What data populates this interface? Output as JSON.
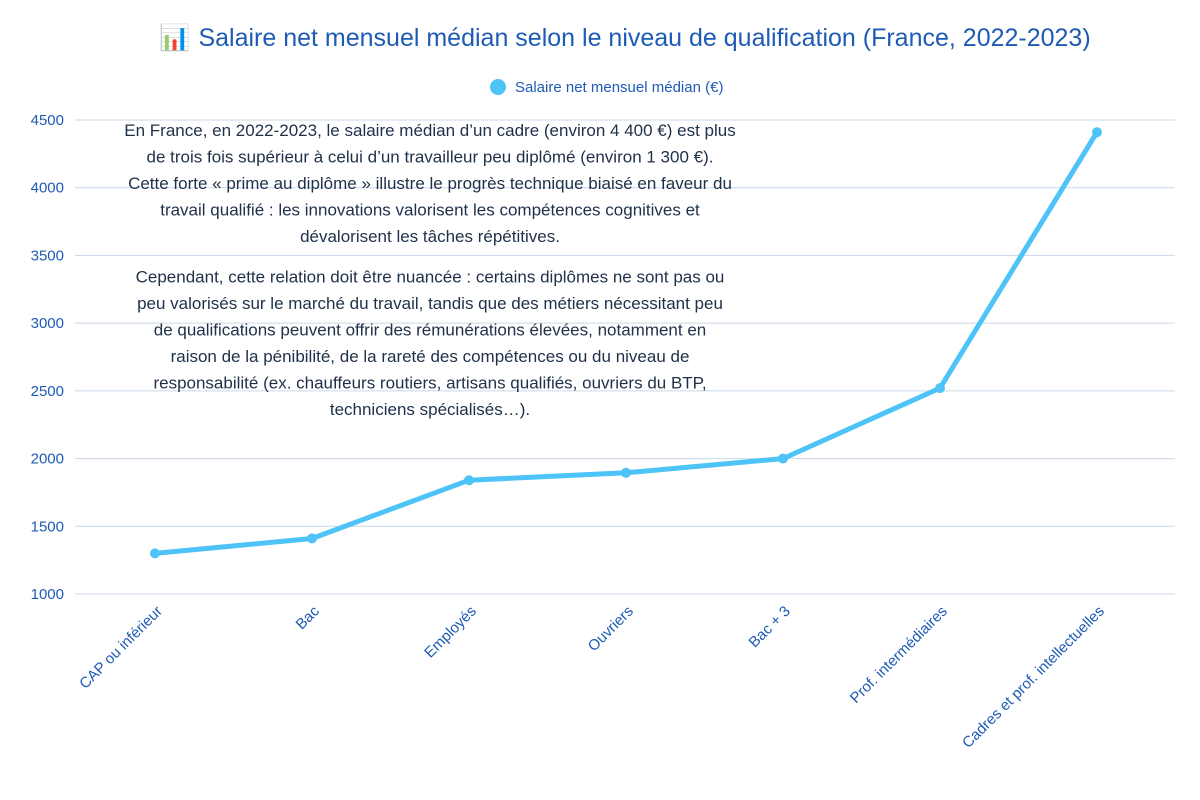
{
  "chart_data": {
    "type": "line",
    "title_icon": "📊",
    "title": "Salaire net mensuel médian selon le niveau de qualification (France, 2022-2023)",
    "categories": [
      "CAP ou inférieur",
      "Bac",
      "Employés",
      "Ouvriers",
      "Bac + 3",
      "Prof. intermédiaires",
      "Cadres et prof. intellectuelles"
    ],
    "series": [
      {
        "name": "Salaire net mensuel médian (€)",
        "values": [
          1300,
          1410,
          1840,
          1895,
          2000,
          2520,
          4410
        ]
      }
    ],
    "ylim": [
      1000,
      4500
    ],
    "yticks": [
      1000,
      1500,
      2000,
      2500,
      3000,
      3500,
      4000,
      4500
    ],
    "xlabel": "",
    "ylabel": "",
    "grid": true,
    "legend": "top-center",
    "colors": {
      "line": "#4dc3f7",
      "text": "#1e5bb5",
      "annotation": "#1f3049",
      "grid": "#c9d7e8"
    },
    "annotation": [
      "En France, en 2022-2023, le salaire médian d’un cadre (environ 4 400 €) est plus",
      "de trois fois supérieur à celui d’un travailleur peu diplômé (environ 1 300 €).",
      "Cette forte « prime au diplôme » illustre le progrès technique biaisé en faveur du",
      "travail qualifié : les innovations valorisent les compétences cognitives et",
      "dévalorisent les tâches répétitives.",
      "",
      "Cependant, cette relation doit être nuancée : certains diplômes ne sont pas ou",
      "peu valorisés sur le marché du travail, tandis que des métiers nécessitant peu",
      "de qualifications peuvent offrir des rémunérations élevées, notamment en",
      "raison de la pénibilité, de la rareté des compétences ou du niveau de",
      "responsabilité (ex. chauffeurs routiers, artisans qualifiés, ouvriers du BTP,",
      "techniciens spécialisés…)."
    ]
  }
}
